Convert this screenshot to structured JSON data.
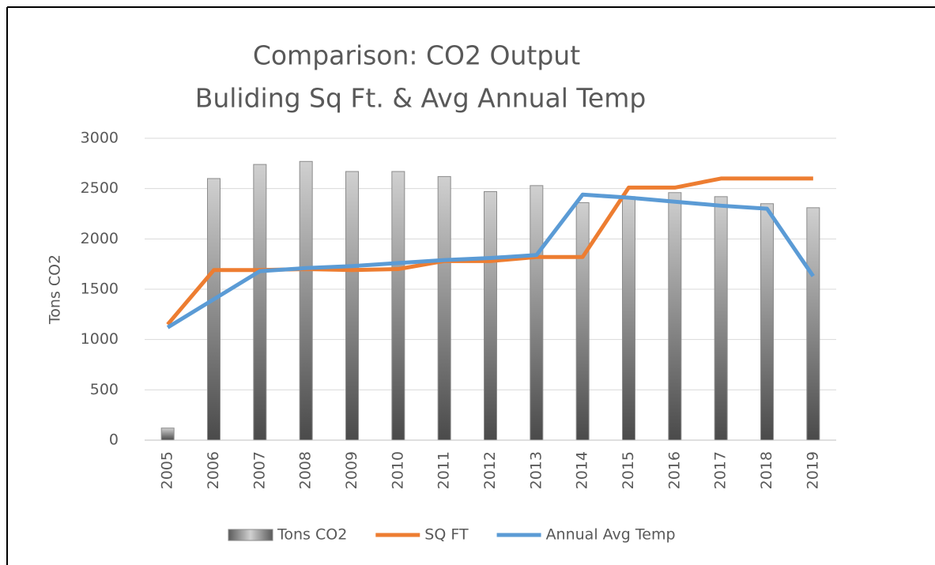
{
  "chart_data": {
    "type": "combo",
    "title": "Comparison: CO2 Output",
    "subtitle": "Buliding Sq Ft. & Avg Annual Temp",
    "y_label": "Tons CO2",
    "categories": [
      "2005",
      "2006",
      "2007",
      "2008",
      "2009",
      "2010",
      "2011",
      "2012",
      "2013",
      "2014",
      "2015",
      "2016",
      "2017",
      "2018",
      "2019"
    ],
    "series": [
      {
        "name": "Tons CO2",
        "type": "bar",
        "color": "#8c8c8c",
        "values": [
          120,
          2600,
          2740,
          2770,
          2670,
          2670,
          2620,
          2470,
          2530,
          2360,
          2420,
          2460,
          2420,
          2350,
          2310
        ]
      },
      {
        "name": "SQ FT",
        "type": "line",
        "color": "#ed7d31",
        "values": [
          1150,
          1690,
          1690,
          1700,
          1690,
          1700,
          1780,
          1780,
          1820,
          1820,
          2510,
          2510,
          2600,
          2600,
          2600
        ]
      },
      {
        "name": "Annual Avg Temp",
        "type": "line",
        "color": "#5b9bd5",
        "values": [
          1120,
          1400,
          1680,
          1710,
          1730,
          1760,
          1790,
          1810,
          1840,
          2440,
          2410,
          2370,
          2330,
          2300,
          1630
        ]
      }
    ],
    "ylim": [
      0,
      3000
    ],
    "yticks": [
      0,
      500,
      1000,
      1500,
      2000,
      2500,
      3000
    ],
    "grid": true,
    "legend": "bottom"
  }
}
